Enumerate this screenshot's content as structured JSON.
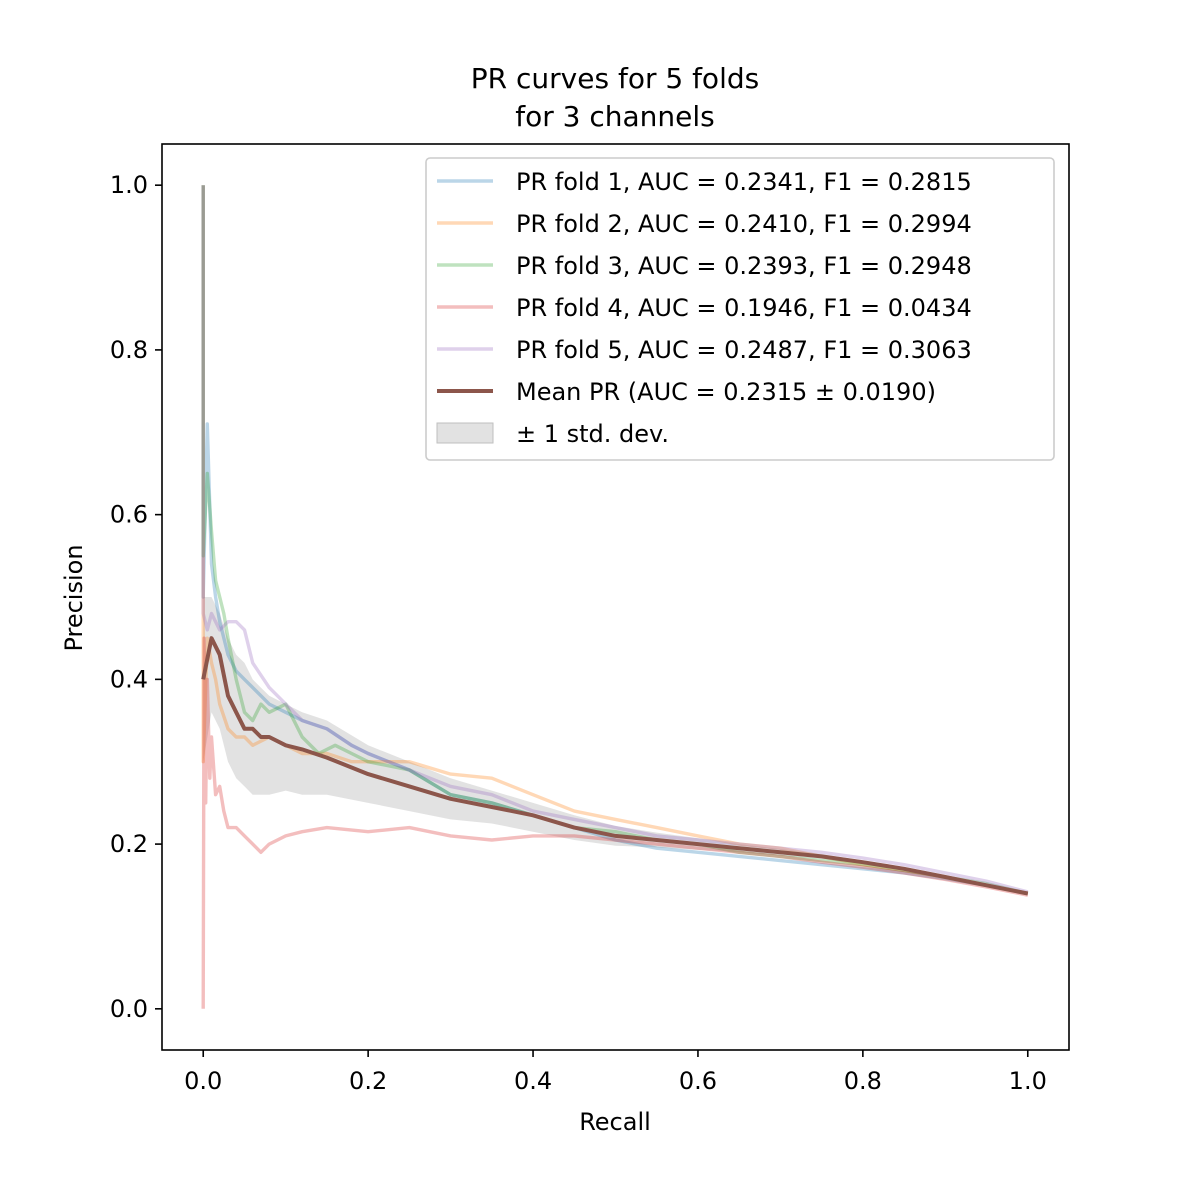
{
  "chart_data": {
    "type": "line",
    "title_line1": "PR curves for 5 folds",
    "title_line2": "for 3 channels",
    "xlabel": "Recall",
    "ylabel": "Precision",
    "xlim": [
      -0.05,
      1.05
    ],
    "ylim": [
      -0.05,
      1.05
    ],
    "xticks": [
      0.0,
      0.2,
      0.4,
      0.6,
      0.8,
      1.0
    ],
    "xtick_labels": [
      "0.0",
      "0.2",
      "0.4",
      "0.6",
      "0.8",
      "1.0"
    ],
    "yticks": [
      0.0,
      0.2,
      0.4,
      0.6,
      0.8,
      1.0
    ],
    "ytick_labels": [
      "0.0",
      "0.2",
      "0.4",
      "0.6",
      "0.8",
      "1.0"
    ],
    "grid": false,
    "legend_position": "top-right",
    "series": [
      {
        "name": "PR fold 1, AUC = 0.2341, F1 = 0.2815",
        "color": "#1f77b4",
        "x": [
          0.0,
          0.0,
          0.005,
          0.01,
          0.015,
          0.02,
          0.03,
          0.04,
          0.05,
          0.06,
          0.08,
          0.1,
          0.12,
          0.15,
          0.18,
          0.2,
          0.25,
          0.3,
          0.35,
          0.4,
          0.45,
          0.5,
          0.55,
          0.6,
          0.65,
          0.7,
          0.75,
          0.8,
          0.85,
          0.9,
          0.95,
          1.0
        ],
        "y": [
          1.0,
          0.5,
          0.71,
          0.54,
          0.5,
          0.47,
          0.43,
          0.41,
          0.4,
          0.39,
          0.37,
          0.36,
          0.35,
          0.34,
          0.32,
          0.31,
          0.29,
          0.26,
          0.25,
          0.235,
          0.22,
          0.205,
          0.195,
          0.19,
          0.185,
          0.18,
          0.175,
          0.17,
          0.165,
          0.158,
          0.15,
          0.14
        ]
      },
      {
        "name": "PR fold 2, AUC = 0.2410, F1 = 0.2994",
        "color": "#ff7f0e",
        "x": [
          0.0,
          0.0,
          0.005,
          0.01,
          0.015,
          0.02,
          0.03,
          0.04,
          0.05,
          0.06,
          0.08,
          0.1,
          0.12,
          0.15,
          0.18,
          0.2,
          0.25,
          0.3,
          0.35,
          0.4,
          0.45,
          0.5,
          0.55,
          0.6,
          0.65,
          0.7,
          0.75,
          0.8,
          0.85,
          0.9,
          0.95,
          1.0
        ],
        "y": [
          1.0,
          0.3,
          0.45,
          0.42,
          0.4,
          0.37,
          0.34,
          0.33,
          0.33,
          0.32,
          0.33,
          0.32,
          0.31,
          0.31,
          0.3,
          0.3,
          0.3,
          0.285,
          0.28,
          0.26,
          0.24,
          0.23,
          0.22,
          0.21,
          0.2,
          0.195,
          0.185,
          0.175,
          0.168,
          0.16,
          0.15,
          0.14
        ]
      },
      {
        "name": "PR fold 3, AUC = 0.2393, F1 = 0.2948",
        "color": "#2ca02c",
        "x": [
          0.0,
          0.0,
          0.005,
          0.01,
          0.015,
          0.02,
          0.025,
          0.03,
          0.04,
          0.05,
          0.06,
          0.07,
          0.08,
          0.1,
          0.12,
          0.14,
          0.16,
          0.18,
          0.2,
          0.25,
          0.3,
          0.35,
          0.4,
          0.45,
          0.5,
          0.55,
          0.6,
          0.65,
          0.7,
          0.75,
          0.8,
          0.85,
          0.9,
          0.95,
          1.0
        ],
        "y": [
          1.0,
          0.55,
          0.65,
          0.58,
          0.52,
          0.5,
          0.48,
          0.45,
          0.4,
          0.36,
          0.35,
          0.37,
          0.36,
          0.37,
          0.33,
          0.31,
          0.32,
          0.31,
          0.3,
          0.29,
          0.26,
          0.25,
          0.235,
          0.22,
          0.215,
          0.205,
          0.2,
          0.19,
          0.185,
          0.18,
          0.175,
          0.168,
          0.16,
          0.152,
          0.14
        ]
      },
      {
        "name": "PR fold 4, AUC = 0.1946, F1 = 0.0434",
        "color": "#d62728",
        "x": [
          0.0,
          0.0,
          0.001,
          0.003,
          0.005,
          0.008,
          0.01,
          0.015,
          0.02,
          0.025,
          0.03,
          0.04,
          0.05,
          0.06,
          0.07,
          0.08,
          0.1,
          0.12,
          0.15,
          0.2,
          0.25,
          0.3,
          0.35,
          0.4,
          0.45,
          0.5,
          0.55,
          0.6,
          0.65,
          0.7,
          0.75,
          0.8,
          0.85,
          0.9,
          0.95,
          1.0
        ],
        "y": [
          0.0,
          0.0,
          0.45,
          0.25,
          0.4,
          0.28,
          0.33,
          0.26,
          0.27,
          0.24,
          0.22,
          0.22,
          0.21,
          0.2,
          0.19,
          0.2,
          0.21,
          0.215,
          0.22,
          0.215,
          0.22,
          0.21,
          0.205,
          0.21,
          0.21,
          0.205,
          0.2,
          0.195,
          0.19,
          0.185,
          0.178,
          0.172,
          0.165,
          0.157,
          0.148,
          0.138
        ]
      },
      {
        "name": "PR fold 5, AUC = 0.2487, F1 = 0.3063",
        "color": "#9467bd",
        "x": [
          0.0,
          0.0,
          0.005,
          0.01,
          0.015,
          0.02,
          0.03,
          0.04,
          0.05,
          0.06,
          0.08,
          0.1,
          0.12,
          0.15,
          0.18,
          0.2,
          0.25,
          0.3,
          0.35,
          0.4,
          0.45,
          0.5,
          0.55,
          0.6,
          0.65,
          0.7,
          0.75,
          0.8,
          0.85,
          0.9,
          0.95,
          1.0
        ],
        "y": [
          1.0,
          0.48,
          0.46,
          0.48,
          0.47,
          0.46,
          0.47,
          0.47,
          0.46,
          0.42,
          0.39,
          0.37,
          0.35,
          0.34,
          0.32,
          0.31,
          0.29,
          0.27,
          0.26,
          0.24,
          0.23,
          0.22,
          0.21,
          0.205,
          0.2,
          0.195,
          0.19,
          0.183,
          0.175,
          0.165,
          0.155,
          0.142
        ]
      },
      {
        "name": "Mean PR (AUC = 0.2315 ± 0.0190)",
        "color": "#8c564b",
        "x": [
          0.0,
          0.01,
          0.02,
          0.03,
          0.04,
          0.05,
          0.06,
          0.07,
          0.08,
          0.1,
          0.12,
          0.15,
          0.2,
          0.25,
          0.3,
          0.35,
          0.4,
          0.45,
          0.5,
          0.55,
          0.6,
          0.65,
          0.7,
          0.75,
          0.8,
          0.85,
          0.9,
          0.95,
          1.0
        ],
        "y": [
          0.4,
          0.45,
          0.43,
          0.38,
          0.36,
          0.34,
          0.34,
          0.33,
          0.33,
          0.32,
          0.315,
          0.305,
          0.285,
          0.27,
          0.255,
          0.245,
          0.235,
          0.22,
          0.21,
          0.205,
          0.2,
          0.195,
          0.19,
          0.185,
          0.178,
          0.17,
          0.16,
          0.15,
          0.14
        ]
      }
    ],
    "std_band": {
      "name": "± 1 std. dev.",
      "color": "#bfbfbf",
      "x": [
        0.0,
        0.01,
        0.02,
        0.03,
        0.04,
        0.05,
        0.06,
        0.07,
        0.08,
        0.1,
        0.12,
        0.15,
        0.2,
        0.25,
        0.3,
        0.35,
        0.4,
        0.45,
        0.5,
        0.55,
        0.6,
        0.65,
        0.7,
        0.75,
        0.8,
        0.85,
        0.9,
        0.95,
        1.0
      ],
      "upper": [
        0.5,
        0.5,
        0.48,
        0.45,
        0.43,
        0.42,
        0.4,
        0.39,
        0.38,
        0.37,
        0.36,
        0.35,
        0.32,
        0.3,
        0.28,
        0.265,
        0.25,
        0.235,
        0.222,
        0.214,
        0.207,
        0.2,
        0.194,
        0.188,
        0.18,
        0.172,
        0.162,
        0.152,
        0.141
      ],
      "lower": [
        0.3,
        0.36,
        0.34,
        0.3,
        0.28,
        0.27,
        0.26,
        0.26,
        0.26,
        0.265,
        0.26,
        0.26,
        0.25,
        0.24,
        0.23,
        0.225,
        0.215,
        0.205,
        0.198,
        0.196,
        0.193,
        0.19,
        0.186,
        0.182,
        0.176,
        0.168,
        0.158,
        0.148,
        0.139
      ]
    }
  }
}
